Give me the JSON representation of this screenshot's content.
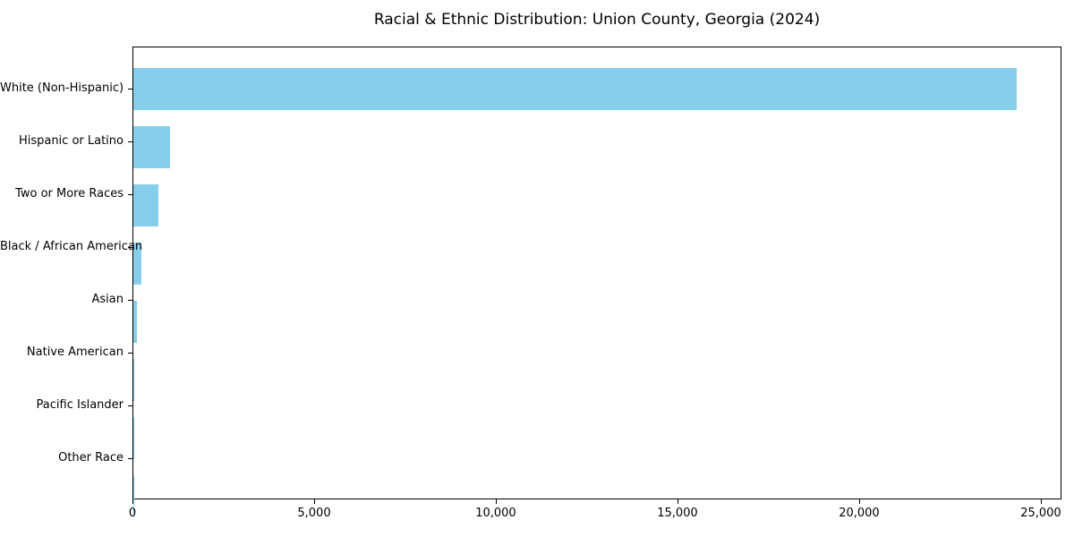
{
  "chart_data": {
    "type": "bar",
    "orientation": "horizontal",
    "title": "Racial & Ethnic Distribution: Union County, Georgia (2024)",
    "xlabel": "",
    "ylabel": "",
    "categories": [
      "White (Non-Hispanic)",
      "Hispanic or Latino",
      "Two or More Races",
      "Black / African American",
      "Asian",
      "Native American",
      "Pacific Islander",
      "Other Race"
    ],
    "values": [
      24350,
      1000,
      700,
      220,
      100,
      35,
      10,
      20
    ],
    "bar_color": "#87CEEB",
    "background_color": "#ffffff",
    "spine_color": "#000000",
    "xlim": [
      0,
      25568
    ],
    "grid": false,
    "legend": null,
    "xticks": [
      {
        "value": 0,
        "label": "0"
      },
      {
        "value": 5000,
        "label": "5,000"
      },
      {
        "value": 10000,
        "label": "10,000"
      },
      {
        "value": 15000,
        "label": "15,000"
      },
      {
        "value": 20000,
        "label": "20,000"
      },
      {
        "value": 25000,
        "label": "25,000"
      }
    ]
  }
}
